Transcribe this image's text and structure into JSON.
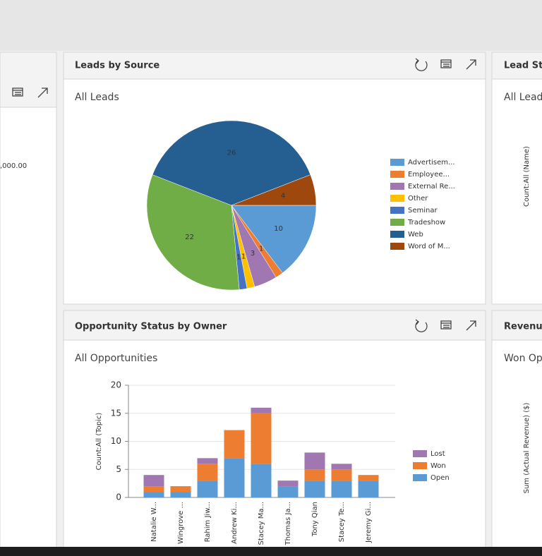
{
  "left_panel": {
    "value_text": ",000.00"
  },
  "panels": [
    {
      "title": "Leads by Source",
      "view": "All Leads"
    },
    {
      "title": "Opportunity Status by Owner",
      "view": "All Opportunities"
    },
    {
      "title": "Lead Sta",
      "view": "All Leads",
      "axis_label": "CountːAll (Name)"
    },
    {
      "title": "Revenue",
      "view": "Won Opp",
      "axis_label": "Sum (Actual Revenue) ($)"
    }
  ],
  "chart_data": [
    {
      "type": "pie",
      "categories": [
        "Advertisem...",
        "Employee...",
        "External Re...",
        "Other",
        "Seminar",
        "Tradeshow",
        "Web",
        "Word of M..."
      ],
      "values": [
        10,
        1,
        3,
        1,
        1,
        22,
        26,
        4
      ],
      "colors": [
        "#5b9bd5",
        "#ed7d31",
        "#a077b0",
        "#ffc000",
        "#4472c4",
        "#70ad47",
        "#255e91",
        "#9e480e"
      ],
      "legend": "right"
    },
    {
      "type": "bar",
      "stacked": true,
      "y_label": "CountːAll (Topic)",
      "categories": [
        "Natalie W...",
        "Wingrove ...",
        "Rahim Jiw...",
        "Andrew Ki...",
        "Stacey Ma...",
        "Thomas Ja...",
        "Tony Qian",
        "Stacey Te...",
        "Jeremy Gi..."
      ],
      "series": [
        {
          "name": "Open",
          "color": "#5b9bd5",
          "values": [
            1,
            1,
            3,
            7,
            6,
            2,
            3,
            3,
            3
          ]
        },
        {
          "name": "Won",
          "color": "#ed7d31",
          "values": [
            1,
            1,
            3,
            5,
            9,
            0,
            2,
            2,
            1
          ]
        },
        {
          "name": "Lost",
          "color": "#a077b0",
          "values": [
            2,
            0,
            1,
            0,
            1,
            1,
            3,
            1,
            0
          ]
        }
      ],
      "ylim": [
        0,
        20
      ],
      "yticks": [
        0,
        5,
        10,
        15,
        20
      ],
      "grid": true,
      "legend": "right"
    }
  ]
}
